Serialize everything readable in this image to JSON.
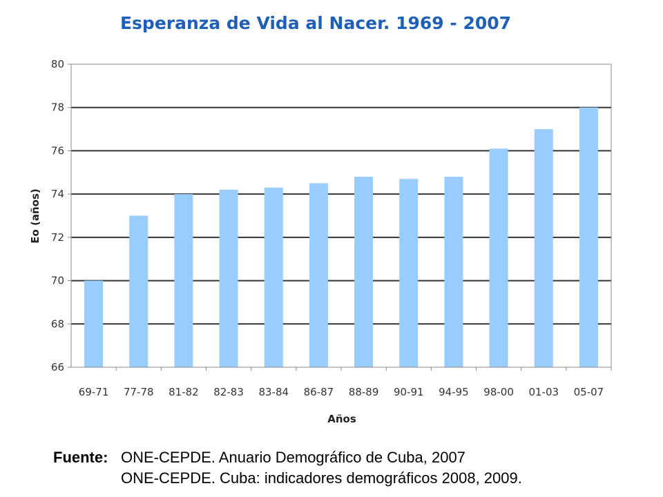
{
  "chart_data": {
    "type": "bar",
    "title": "Esperanza de Vida al Nacer. 1969 - 2007",
    "xlabel": "Años",
    "ylabel": "Eo (años)",
    "ylim": [
      66,
      80
    ],
    "yticks": [
      66,
      68,
      70,
      72,
      74,
      76,
      78,
      80
    ],
    "grid": true,
    "categories": [
      "69-71",
      "77-78",
      "81-82",
      "82-83",
      "83-84",
      "86-87",
      "88-89",
      "90-91",
      "94-95",
      "98-00",
      "01-03",
      "05-07"
    ],
    "values": [
      70.0,
      73.0,
      74.0,
      74.2,
      74.3,
      74.5,
      74.8,
      74.7,
      74.8,
      76.1,
      77.0,
      78.0
    ],
    "colors": {
      "bar": "#99ccff",
      "grid": "#333333",
      "axis": "#888888",
      "title": "#1f5fb8"
    }
  },
  "source": {
    "label": "Fuente:",
    "line1": "ONE-CEPDE. Anuario Demográfico de Cuba, 2007",
    "line2": "ONE-CEPDE. Cuba: indicadores demográficos 2008, 2009."
  }
}
